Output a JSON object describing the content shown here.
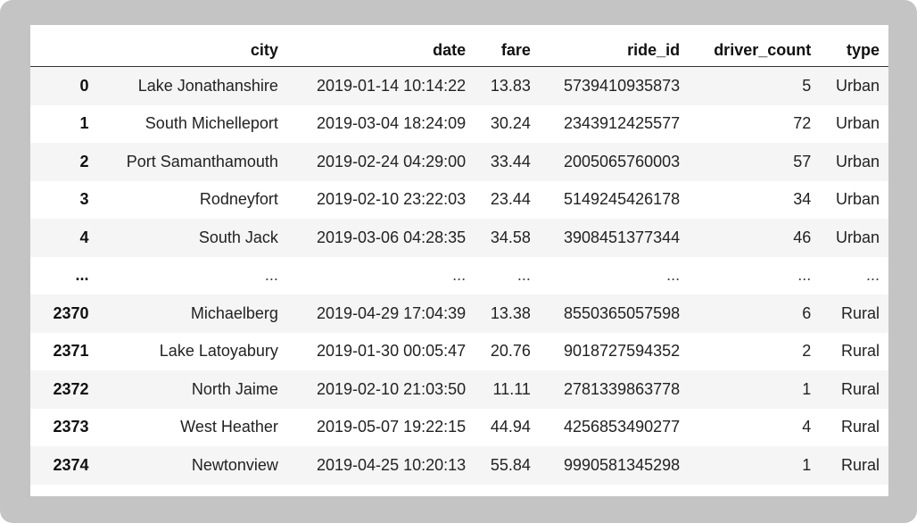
{
  "table": {
    "columns": {
      "index": "",
      "city": "city",
      "date": "date",
      "fare": "fare",
      "ride_id": "ride_id",
      "driver_count": "driver_count",
      "type": "type"
    },
    "rows": [
      {
        "index": "0",
        "city": "Lake Jonathanshire",
        "date": "2019-01-14 10:14:22",
        "fare": "13.83",
        "ride_id": "5739410935873",
        "driver_count": "5",
        "type": "Urban"
      },
      {
        "index": "1",
        "city": "South Michelleport",
        "date": "2019-03-04 18:24:09",
        "fare": "30.24",
        "ride_id": "2343912425577",
        "driver_count": "72",
        "type": "Urban"
      },
      {
        "index": "2",
        "city": "Port Samanthamouth",
        "date": "2019-02-24 04:29:00",
        "fare": "33.44",
        "ride_id": "2005065760003",
        "driver_count": "57",
        "type": "Urban"
      },
      {
        "index": "3",
        "city": "Rodneyfort",
        "date": "2019-02-10 23:22:03",
        "fare": "23.44",
        "ride_id": "5149245426178",
        "driver_count": "34",
        "type": "Urban"
      },
      {
        "index": "4",
        "city": "South Jack",
        "date": "2019-03-06 04:28:35",
        "fare": "34.58",
        "ride_id": "3908451377344",
        "driver_count": "46",
        "type": "Urban"
      },
      {
        "index": "...",
        "city": "...",
        "date": "...",
        "fare": "...",
        "ride_id": "...",
        "driver_count": "...",
        "type": "..."
      },
      {
        "index": "2370",
        "city": "Michaelberg",
        "date": "2019-04-29 17:04:39",
        "fare": "13.38",
        "ride_id": "8550365057598",
        "driver_count": "6",
        "type": "Rural"
      },
      {
        "index": "2371",
        "city": "Lake Latoyabury",
        "date": "2019-01-30 00:05:47",
        "fare": "20.76",
        "ride_id": "9018727594352",
        "driver_count": "2",
        "type": "Rural"
      },
      {
        "index": "2372",
        "city": "North Jaime",
        "date": "2019-02-10 21:03:50",
        "fare": "11.11",
        "ride_id": "2781339863778",
        "driver_count": "1",
        "type": "Rural"
      },
      {
        "index": "2373",
        "city": "West Heather",
        "date": "2019-05-07 19:22:15",
        "fare": "44.94",
        "ride_id": "4256853490277",
        "driver_count": "4",
        "type": "Rural"
      },
      {
        "index": "2374",
        "city": "Newtonview",
        "date": "2019-04-25 10:20:13",
        "fare": "55.84",
        "ride_id": "9990581345298",
        "driver_count": "1",
        "type": "Rural"
      }
    ]
  }
}
